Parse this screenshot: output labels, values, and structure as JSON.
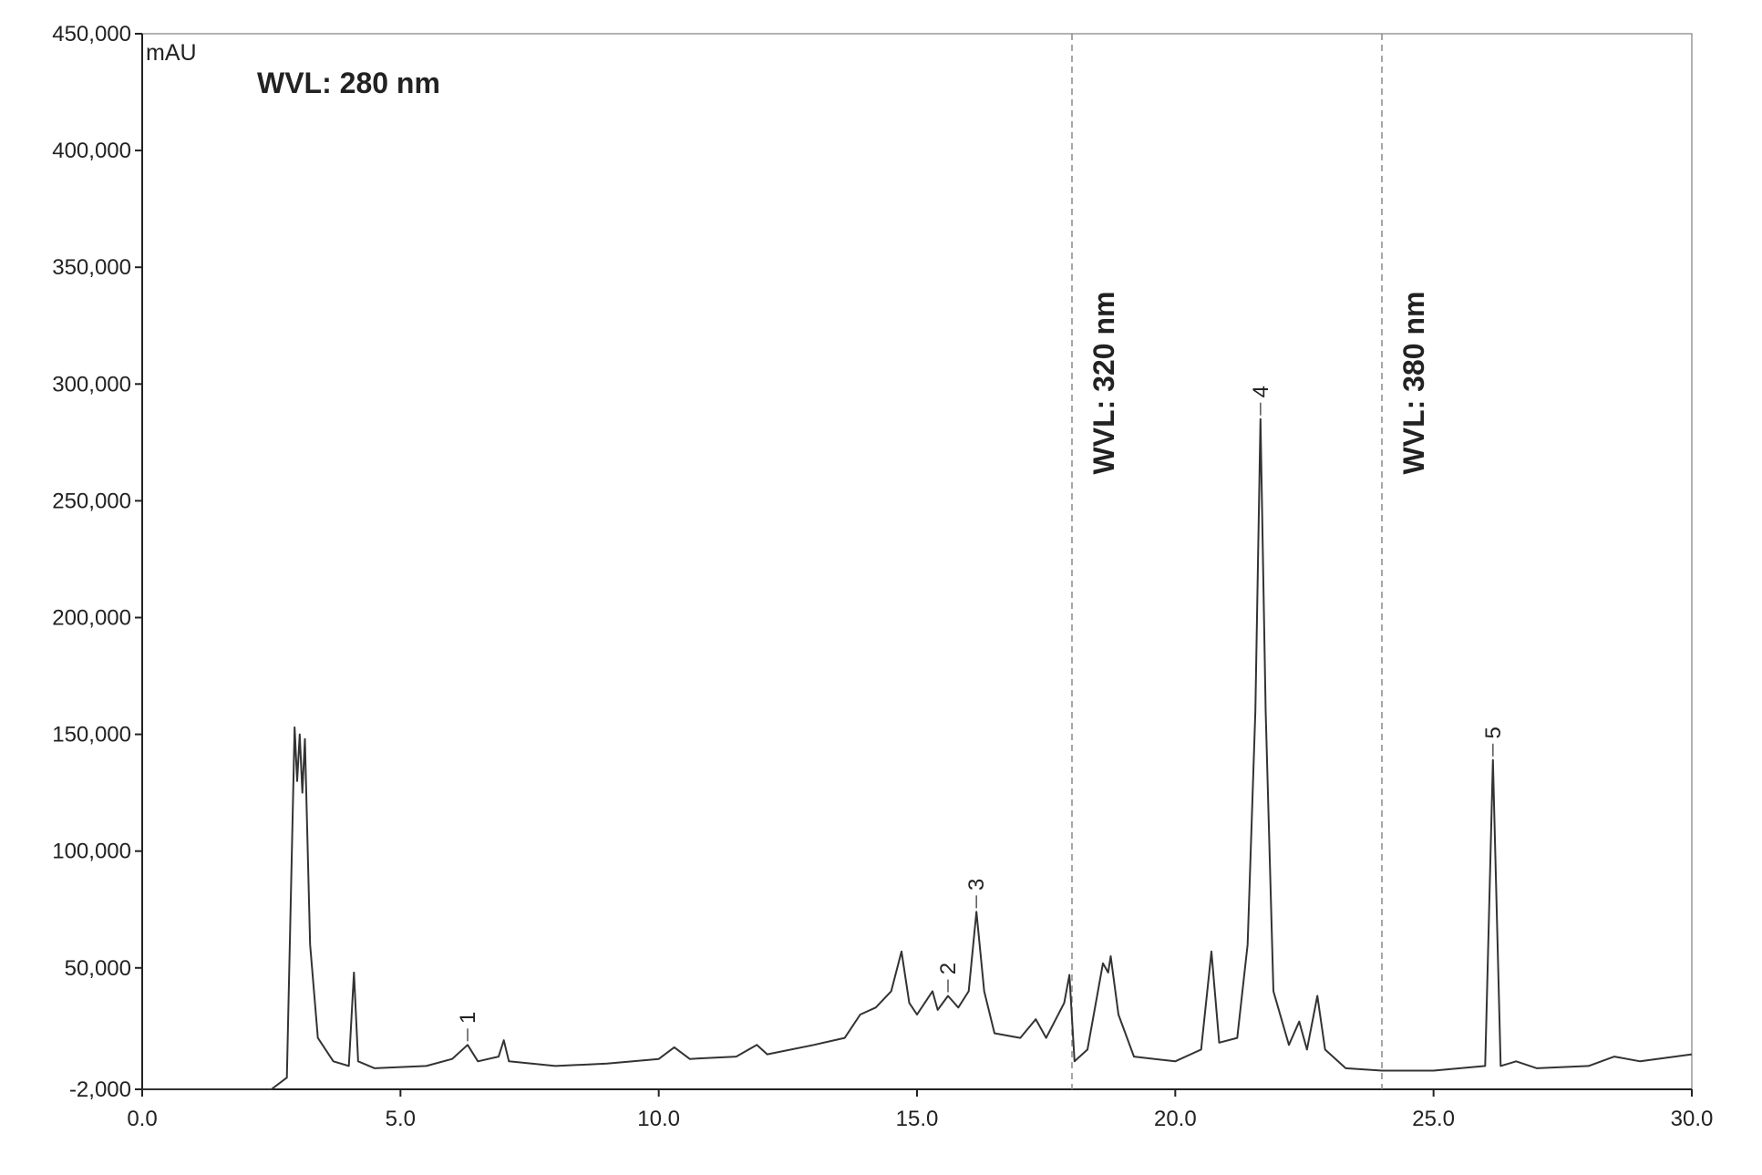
{
  "chart_data": {
    "type": "line",
    "y_unit": "mAU",
    "wvl_initial": "WVL: 280 nm",
    "color": "#333333",
    "x": [
      0,
      2.5,
      2.8,
      2.95,
      3.0,
      3.05,
      3.1,
      3.15,
      3.25,
      3.4,
      3.7,
      4.0,
      4.1,
      4.18,
      4.5,
      5.5,
      6.0,
      6.3,
      6.5,
      6.9,
      7.0,
      7.1,
      8,
      9,
      10,
      10.3,
      10.6,
      11.5,
      11.9,
      12.1,
      13,
      13.6,
      13.9,
      14.2,
      14.5,
      14.7,
      14.85,
      15.0,
      15.3,
      15.4,
      15.6,
      15.8,
      16.0,
      16.15,
      16.3,
      16.5,
      17.0,
      17.3,
      17.5,
      17.85,
      17.95,
      18.05,
      18.3,
      18.6,
      18.7,
      18.75,
      18.9,
      19.2,
      20.0,
      20.5,
      20.7,
      20.85,
      21.2,
      21.4,
      21.55,
      21.65,
      21.75,
      21.9,
      22.2,
      22.4,
      22.55,
      22.75,
      22.9,
      23.3,
      24,
      25,
      26,
      26.15,
      26.3,
      26.6,
      27,
      28,
      28.5,
      29,
      30
    ],
    "values": [
      -2000,
      -2000,
      3000,
      153000,
      130000,
      150000,
      125000,
      148000,
      60000,
      20000,
      10000,
      8000,
      48000,
      10000,
      7000,
      8000,
      11000,
      17000,
      10000,
      12000,
      19000,
      10000,
      8000,
      9000,
      11000,
      16000,
      11000,
      12000,
      17000,
      13000,
      17000,
      20000,
      30000,
      33000,
      40000,
      57000,
      35000,
      30000,
      40000,
      32000,
      38000,
      33000,
      40000,
      74000,
      40000,
      22000,
      20000,
      28000,
      20000,
      35000,
      47000,
      10000,
      15000,
      52000,
      48000,
      55000,
      30000,
      12000,
      10000,
      15000,
      57000,
      18000,
      20000,
      60000,
      160000,
      285000,
      160000,
      40000,
      17000,
      27000,
      15000,
      38000,
      15000,
      7000,
      6000,
      6000,
      8000,
      139000,
      8000,
      10000,
      7000,
      8000,
      12000,
      10000,
      13000
    ],
    "xlim": [
      0,
      30
    ],
    "ylim": [
      -2000,
      450000
    ],
    "xticks": [
      {
        "value": 0,
        "label": "0.0"
      },
      {
        "value": 5,
        "label": "5.0"
      },
      {
        "value": 10,
        "label": "10.0"
      },
      {
        "value": 15,
        "label": "15.0"
      },
      {
        "value": 20,
        "label": "20.0"
      },
      {
        "value": 25,
        "label": "25.0"
      },
      {
        "value": 30,
        "label": "30.0"
      }
    ],
    "yticks": [
      {
        "value": -2000,
        "label": "-2,000"
      },
      {
        "value": 50000,
        "label": "50,000"
      },
      {
        "value": 100000,
        "label": "100,000"
      },
      {
        "value": 150000,
        "label": "150,000"
      },
      {
        "value": 200000,
        "label": "200,000"
      },
      {
        "value": 250000,
        "label": "250,000"
      },
      {
        "value": 300000,
        "label": "300,000"
      },
      {
        "value": 350000,
        "label": "350,000"
      },
      {
        "value": 400000,
        "label": "400,000"
      },
      {
        "value": 450000,
        "label": "450,000"
      }
    ],
    "wavelength_switches": [
      {
        "x": 18,
        "label": "WVL: 320 nm"
      },
      {
        "x": 24,
        "label": "WVL: 380 nm"
      }
    ],
    "peaks": [
      {
        "label": "1",
        "x": 6.3,
        "y": 17000
      },
      {
        "label": "2",
        "x": 15.6,
        "y": 38000
      },
      {
        "label": "3",
        "x": 16.15,
        "y": 74000
      },
      {
        "label": "4",
        "x": 21.65,
        "y": 285000
      },
      {
        "label": "5",
        "x": 26.15,
        "y": 139000
      }
    ]
  }
}
